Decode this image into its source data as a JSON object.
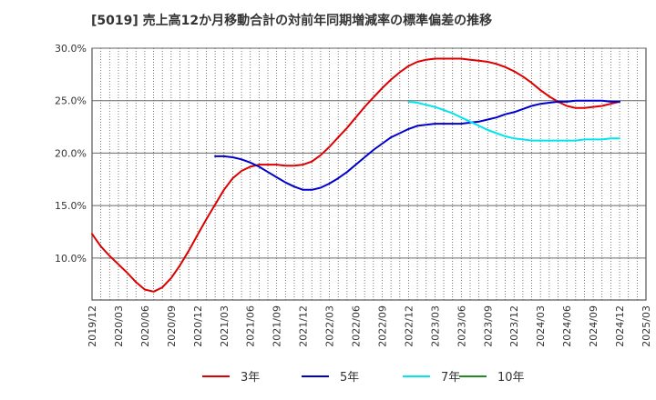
{
  "chart_data": {
    "type": "line",
    "title": "[5019]  売上高12か月移動合計の対前年同期増減率の標準偏差の推移",
    "xlabel": "",
    "ylabel": "",
    "x_ticks": [
      "2019/12",
      "2020/03",
      "2020/06",
      "2020/09",
      "2020/12",
      "2021/03",
      "2021/06",
      "2021/09",
      "2021/12",
      "2022/03",
      "2022/06",
      "2022/09",
      "2022/12",
      "2023/03",
      "2023/06",
      "2023/09",
      "2023/12",
      "2024/03",
      "2024/06",
      "2024/09",
      "2024/12",
      "2025/03"
    ],
    "y_ticks": [
      "10.0%",
      "15.0%",
      "20.0%",
      "25.0%",
      "30.0%"
    ],
    "y_tick_values": [
      10,
      15,
      20,
      25,
      30
    ],
    "ylim": [
      6,
      30
    ],
    "grid": true,
    "legend_position": "bottom",
    "series": [
      {
        "name": "3年",
        "color": "#dd0000",
        "points": [
          [
            "2019/12",
            12.3
          ],
          [
            "2020/01",
            11.1
          ],
          [
            "2020/02",
            10.2
          ],
          [
            "2020/03",
            9.4
          ],
          [
            "2020/04",
            8.6
          ],
          [
            "2020/05",
            7.7
          ],
          [
            "2020/06",
            7.0
          ],
          [
            "2020/07",
            6.8
          ],
          [
            "2020/08",
            7.2
          ],
          [
            "2020/09",
            8.1
          ],
          [
            "2020/10",
            9.3
          ],
          [
            "2020/11",
            10.7
          ],
          [
            "2020/12",
            12.2
          ],
          [
            "2021/01",
            13.7
          ],
          [
            "2021/02",
            15.1
          ],
          [
            "2021/03",
            16.5
          ],
          [
            "2021/04",
            17.6
          ],
          [
            "2021/05",
            18.3
          ],
          [
            "2021/06",
            18.7
          ],
          [
            "2021/07",
            18.9
          ],
          [
            "2021/08",
            18.9
          ],
          [
            "2021/09",
            18.9
          ],
          [
            "2021/10",
            18.8
          ],
          [
            "2021/11",
            18.8
          ],
          [
            "2021/12",
            18.9
          ],
          [
            "2022/01",
            19.2
          ],
          [
            "2022/02",
            19.8
          ],
          [
            "2022/03",
            20.6
          ],
          [
            "2022/04",
            21.5
          ],
          [
            "2022/05",
            22.4
          ],
          [
            "2022/06",
            23.4
          ],
          [
            "2022/07",
            24.4
          ],
          [
            "2022/08",
            25.3
          ],
          [
            "2022/09",
            26.2
          ],
          [
            "2022/10",
            27.0
          ],
          [
            "2022/11",
            27.7
          ],
          [
            "2022/12",
            28.3
          ],
          [
            "2023/01",
            28.7
          ],
          [
            "2023/02",
            28.9
          ],
          [
            "2023/03",
            29.0
          ],
          [
            "2023/04",
            29.0
          ],
          [
            "2023/05",
            29.0
          ],
          [
            "2023/06",
            29.0
          ],
          [
            "2023/07",
            28.9
          ],
          [
            "2023/08",
            28.8
          ],
          [
            "2023/09",
            28.7
          ],
          [
            "2023/10",
            28.5
          ],
          [
            "2023/11",
            28.2
          ],
          [
            "2023/12",
            27.8
          ],
          [
            "2024/01",
            27.3
          ],
          [
            "2024/02",
            26.7
          ],
          [
            "2024/03",
            26.0
          ],
          [
            "2024/04",
            25.4
          ],
          [
            "2024/05",
            24.9
          ],
          [
            "2024/06",
            24.5
          ],
          [
            "2024/07",
            24.3
          ],
          [
            "2024/08",
            24.3
          ],
          [
            "2024/09",
            24.4
          ],
          [
            "2024/10",
            24.5
          ],
          [
            "2024/11",
            24.7
          ],
          [
            "2024/12",
            24.9
          ]
        ]
      },
      {
        "name": "5年",
        "color": "#0000cc",
        "points": [
          [
            "2021/02",
            19.7
          ],
          [
            "2021/03",
            19.7
          ],
          [
            "2021/04",
            19.6
          ],
          [
            "2021/05",
            19.4
          ],
          [
            "2021/06",
            19.1
          ],
          [
            "2021/07",
            18.7
          ],
          [
            "2021/08",
            18.2
          ],
          [
            "2021/09",
            17.7
          ],
          [
            "2021/10",
            17.2
          ],
          [
            "2021/11",
            16.8
          ],
          [
            "2021/12",
            16.5
          ],
          [
            "2022/01",
            16.5
          ],
          [
            "2022/02",
            16.7
          ],
          [
            "2022/03",
            17.1
          ],
          [
            "2022/04",
            17.6
          ],
          [
            "2022/05",
            18.2
          ],
          [
            "2022/06",
            18.9
          ],
          [
            "2022/07",
            19.6
          ],
          [
            "2022/08",
            20.3
          ],
          [
            "2022/09",
            20.9
          ],
          [
            "2022/10",
            21.5
          ],
          [
            "2022/11",
            21.9
          ],
          [
            "2022/12",
            22.3
          ],
          [
            "2023/01",
            22.6
          ],
          [
            "2023/02",
            22.7
          ],
          [
            "2023/03",
            22.8
          ],
          [
            "2023/04",
            22.8
          ],
          [
            "2023/05",
            22.8
          ],
          [
            "2023/06",
            22.8
          ],
          [
            "2023/07",
            22.9
          ],
          [
            "2023/08",
            23.0
          ],
          [
            "2023/09",
            23.2
          ],
          [
            "2023/10",
            23.4
          ],
          [
            "2023/11",
            23.7
          ],
          [
            "2023/12",
            23.9
          ],
          [
            "2024/01",
            24.2
          ],
          [
            "2024/02",
            24.5
          ],
          [
            "2024/03",
            24.7
          ],
          [
            "2024/04",
            24.8
          ],
          [
            "2024/05",
            24.9
          ],
          [
            "2024/06",
            24.9
          ],
          [
            "2024/07",
            25.0
          ],
          [
            "2024/08",
            25.0
          ],
          [
            "2024/09",
            25.0
          ],
          [
            "2024/10",
            25.0
          ],
          [
            "2024/11",
            24.9
          ],
          [
            "2024/12",
            24.9
          ]
        ]
      },
      {
        "name": "7年",
        "color": "#00e5ee",
        "points": [
          [
            "2022/12",
            24.9
          ],
          [
            "2023/01",
            24.8
          ],
          [
            "2023/02",
            24.6
          ],
          [
            "2023/03",
            24.4
          ],
          [
            "2023/04",
            24.1
          ],
          [
            "2023/05",
            23.8
          ],
          [
            "2023/06",
            23.4
          ],
          [
            "2023/07",
            23.0
          ],
          [
            "2023/08",
            22.6
          ],
          [
            "2023/09",
            22.2
          ],
          [
            "2023/10",
            21.9
          ],
          [
            "2023/11",
            21.6
          ],
          [
            "2023/12",
            21.4
          ],
          [
            "2024/01",
            21.3
          ],
          [
            "2024/02",
            21.2
          ],
          [
            "2024/03",
            21.2
          ],
          [
            "2024/04",
            21.2
          ],
          [
            "2024/05",
            21.2
          ],
          [
            "2024/06",
            21.2
          ],
          [
            "2024/07",
            21.2
          ],
          [
            "2024/08",
            21.3
          ],
          [
            "2024/09",
            21.3
          ],
          [
            "2024/10",
            21.3
          ],
          [
            "2024/11",
            21.4
          ],
          [
            "2024/12",
            21.4
          ]
        ]
      },
      {
        "name": "10年",
        "color": "#228b22",
        "points": []
      }
    ]
  }
}
